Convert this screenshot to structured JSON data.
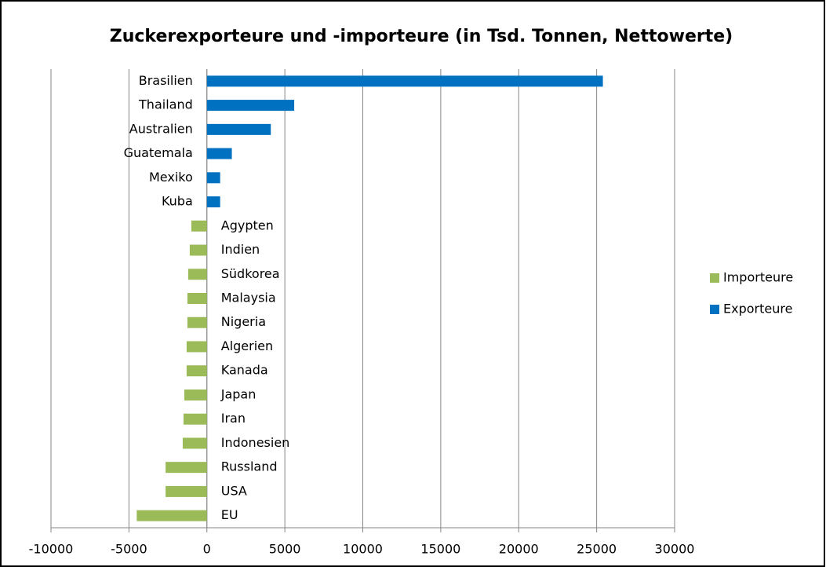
{
  "chart_data": {
    "type": "bar",
    "orientation": "horizontal",
    "title": "Zuckerexporteure und -importeure (in Tsd. Tonnen, Nettowerte)",
    "categories": [
      "Brasilien",
      "Thailand",
      "Australien",
      "Guatemala",
      "Mexiko",
      "Kuba",
      "Agypten",
      "Indien",
      "Südkorea",
      "Malaysia",
      "Nigeria",
      "Algerien",
      "Kanada",
      "Japan",
      "Iran",
      "Indonesien",
      "Russland",
      "USA",
      "EU"
    ],
    "series": [
      {
        "name": "Importeure",
        "color": "#9bbb59",
        "values": [
          null,
          null,
          null,
          null,
          null,
          null,
          -1000,
          -1100,
          -1200,
          -1250,
          -1250,
          -1300,
          -1300,
          -1450,
          -1500,
          -1550,
          -2650,
          -2650,
          -4500
        ]
      },
      {
        "name": "Exporteure",
        "color": "#0070c0",
        "values": [
          25400,
          5600,
          4100,
          1600,
          850,
          850,
          null,
          null,
          null,
          null,
          null,
          null,
          null,
          null,
          null,
          null,
          null,
          null,
          null
        ]
      }
    ],
    "xlim": [
      -10000,
      30000
    ],
    "xticks": [
      -10000,
      -5000,
      0,
      5000,
      10000,
      15000,
      20000,
      25000,
      30000
    ],
    "grid": true,
    "legend": "right"
  }
}
